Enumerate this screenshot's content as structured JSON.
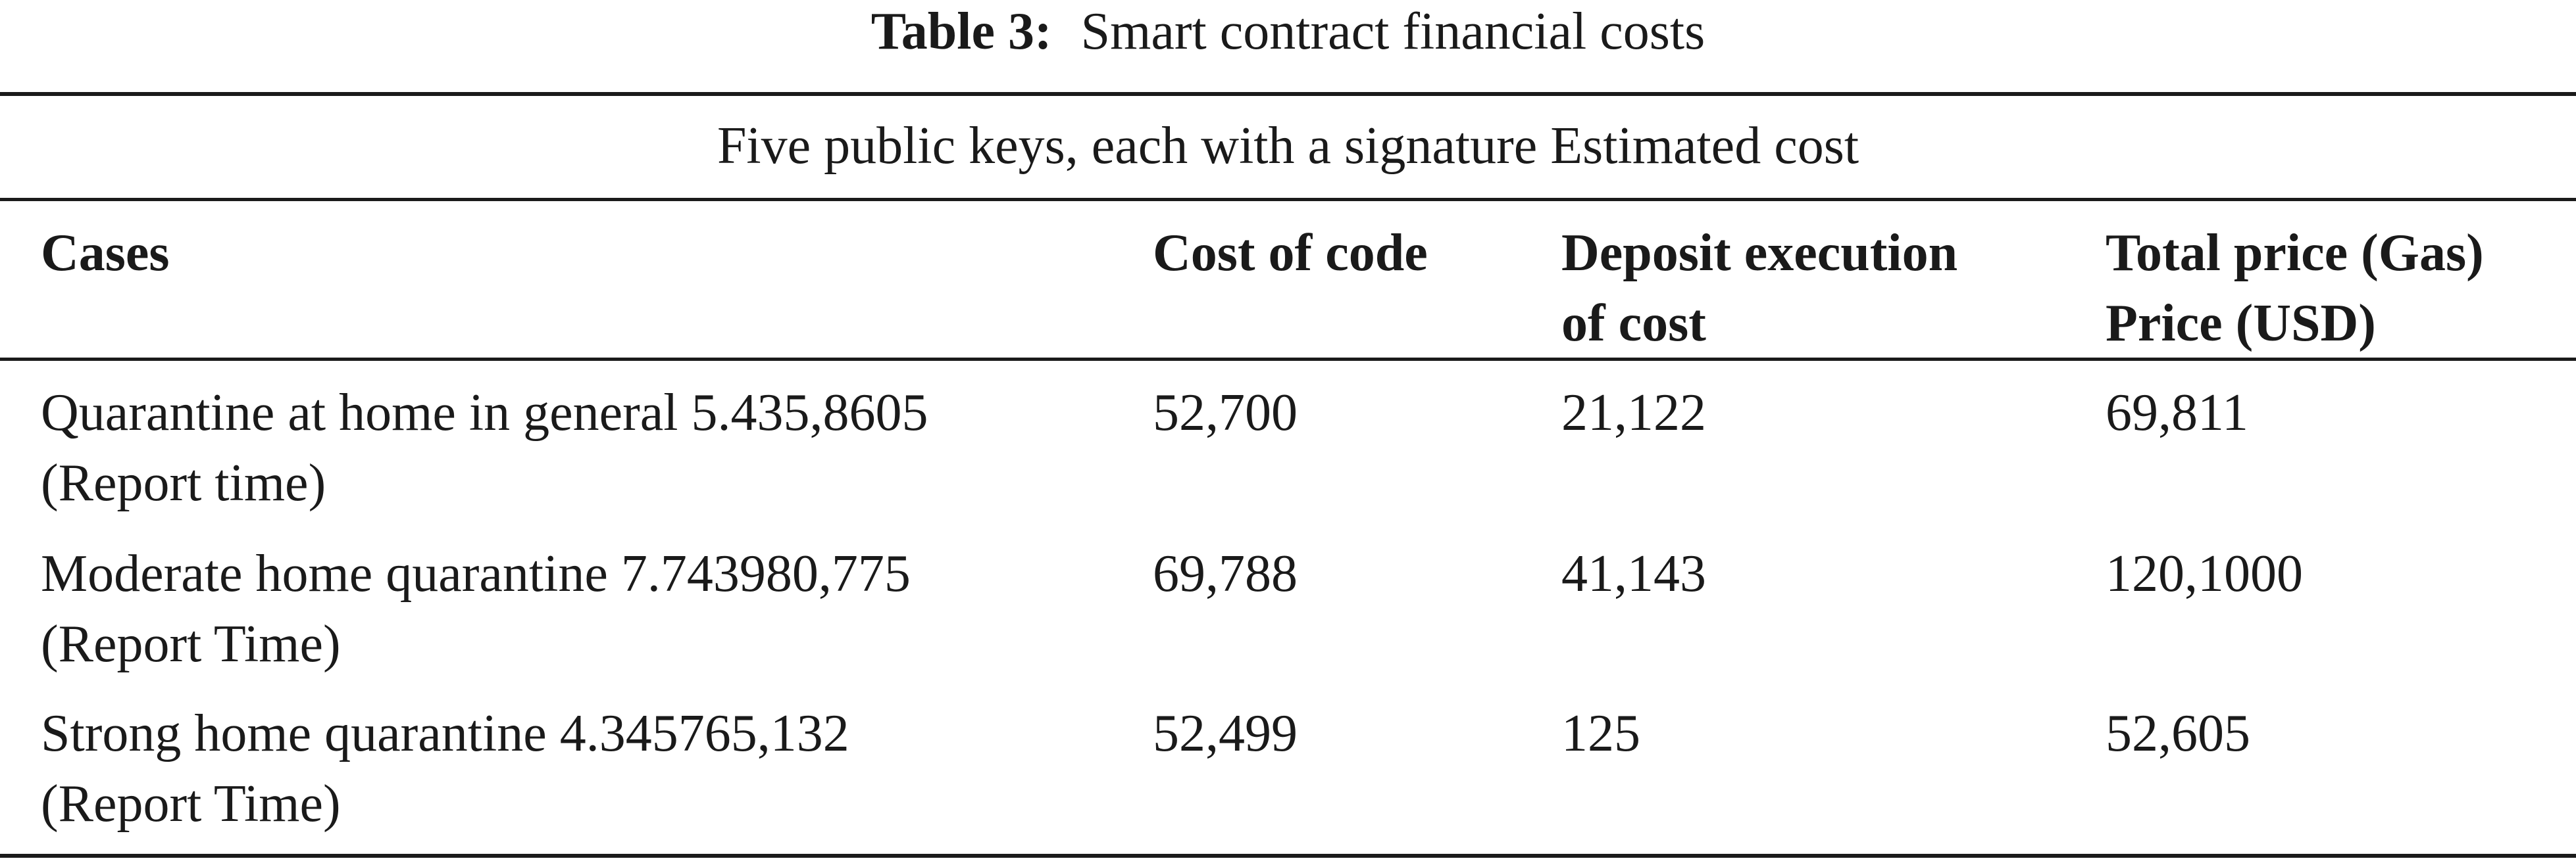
{
  "caption": {
    "label": "Table 3:",
    "text": "Smart contract financial costs"
  },
  "table": {
    "group_header": "Five public keys, each with a signature Estimated cost",
    "columns": [
      {
        "line1": "Cases",
        "line2": ""
      },
      {
        "line1": "Cost of code",
        "line2": ""
      },
      {
        "line1": "Deposit execution",
        "line2": "of cost"
      },
      {
        "line1": "Total price (Gas)",
        "line2": "Price (USD)"
      }
    ],
    "rows": [
      {
        "case_line1": "Quarantine at home in general 5.435,8605",
        "case_line2": "(Report time)",
        "cost_of_code": "52,700",
        "deposit_execution": "21,122",
        "total_price": "69,811"
      },
      {
        "case_line1": "Moderate home quarantine 7.743980,775",
        "case_line2": "(Report Time)",
        "cost_of_code": "69,788",
        "deposit_execution": "41,143",
        "total_price": "120,1000"
      },
      {
        "case_line1": "Strong home quarantine 4.345765,132",
        "case_line2": "(Report Time)",
        "cost_of_code": "52,499",
        "deposit_execution": "125",
        "total_price": "52,605"
      }
    ]
  }
}
